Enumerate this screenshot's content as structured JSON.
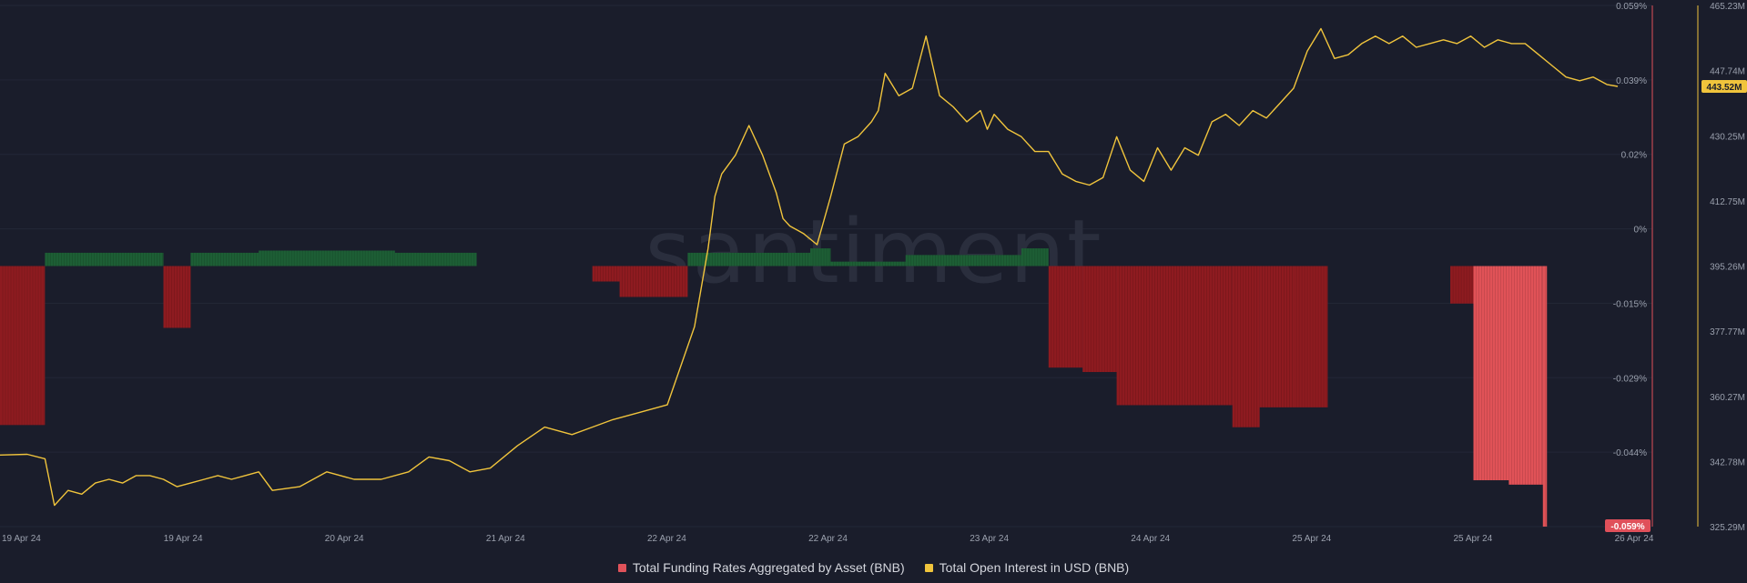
{
  "chart_data": {
    "type": "bar+line",
    "watermark": ".santiment.",
    "x_ticks": [
      "19 Apr 24",
      "19 Apr 24",
      "20 Apr 24",
      "21 Apr 24",
      "22 Apr 24",
      "22 Apr 24",
      "23 Apr 24",
      "24 Apr 24",
      "25 Apr 24",
      "25 Apr 24",
      "26 Apr 24"
    ],
    "y_left": {
      "ticks": [
        "0.059%",
        "0.039%",
        "0.02%",
        "0%",
        "-0.015%",
        "-0.029%",
        "-0.044%",
        "-0.059%"
      ],
      "range": [
        -0.059,
        0.059
      ],
      "unit": "%",
      "current_label": "-0.059%"
    },
    "y_right": {
      "ticks": [
        "465.23M",
        "447.74M",
        "430.25M",
        "412.75M",
        "395.26M",
        "377.77M",
        "360.27M",
        "342.78M",
        "325.29M"
      ],
      "range": [
        325.29,
        465.23
      ],
      "unit": "M",
      "current_label": "443.52M"
    },
    "colors": {
      "positive_bar": "#1d5e35",
      "negative_bar": "#8e1b20",
      "highlight_bar": "#e05257",
      "line": "#f0c43c",
      "left_axis": "#e0505a",
      "right_axis": "#f0c43c"
    },
    "series": [
      {
        "name": "Total Funding Rates Aggregated by Asset (BNB)",
        "kind": "bar",
        "color": "#e0525a",
        "x_range": [
          0,
          120
        ],
        "segments": [
          {
            "from": 0,
            "to": 3.3,
            "value": -0.036
          },
          {
            "from": 3.3,
            "to": 12,
            "value": 0.003
          },
          {
            "from": 12,
            "to": 14,
            "value": -0.014
          },
          {
            "from": 14,
            "to": 19,
            "value": 0.003
          },
          {
            "from": 19,
            "to": 29,
            "value": 0.0035
          },
          {
            "from": 29,
            "to": 35,
            "value": 0.003
          },
          {
            "from": 43.5,
            "to": 45.5,
            "value": -0.0035
          },
          {
            "from": 45.5,
            "to": 50.5,
            "value": -0.007
          },
          {
            "from": 50.5,
            "to": 59.5,
            "value": 0.003
          },
          {
            "from": 59.5,
            "to": 61,
            "value": 0.004
          },
          {
            "from": 61,
            "to": 66.5,
            "value": 0.001
          },
          {
            "from": 66.5,
            "to": 75,
            "value": 0.0025
          },
          {
            "from": 75,
            "to": 77,
            "value": 0.004
          },
          {
            "from": 77,
            "to": 79.5,
            "value": -0.023
          },
          {
            "from": 79.5,
            "to": 82,
            "value": -0.024
          },
          {
            "from": 82,
            "to": 90.5,
            "value": -0.0315
          },
          {
            "from": 90.5,
            "to": 92.5,
            "value": -0.0365
          },
          {
            "from": 92.5,
            "to": 95,
            "value": -0.032
          },
          {
            "from": 95,
            "to": 97.5,
            "value": -0.032
          },
          {
            "from": 106.5,
            "to": 108.2,
            "value": -0.0085
          },
          {
            "from": 108.2,
            "to": 110.8,
            "value": -0.0485,
            "highlight": true
          },
          {
            "from": 110.8,
            "to": 113.3,
            "value": -0.0495,
            "highlight": true
          },
          {
            "from": 113.3,
            "to": 113.6,
            "value": -0.059,
            "highlight": true
          }
        ]
      },
      {
        "name": "Total Open Interest in USD (BNB)",
        "kind": "line",
        "color": "#f0c43c",
        "x_range": [
          0,
          120
        ],
        "x": [
          0,
          2,
          3.3,
          4,
          5,
          6,
          7,
          8,
          9,
          10,
          11,
          12,
          13,
          14,
          15,
          16,
          17,
          18,
          19,
          20,
          22,
          24,
          26,
          28,
          30,
          31.5,
          33,
          34.5,
          36,
          38,
          40,
          42,
          43.5,
          45,
          47,
          49,
          51,
          52,
          52.5,
          53,
          54,
          55,
          56,
          57,
          57.5,
          58,
          59,
          60,
          61,
          62,
          63,
          64,
          64.5,
          65,
          66,
          67,
          68,
          69,
          70,
          71,
          72,
          72.5,
          73,
          74,
          75,
          76,
          77,
          78,
          79,
          80,
          81,
          82,
          83,
          84,
          85,
          86,
          87,
          88,
          89,
          90,
          91,
          92,
          93,
          94,
          95,
          96,
          97,
          98,
          99,
          100,
          101,
          102,
          103,
          104,
          105,
          106,
          107,
          108,
          109,
          110,
          111,
          112,
          113,
          114,
          115,
          116,
          117,
          118,
          118.8
        ],
        "values": [
          344.5,
          344.7,
          343.5,
          331,
          335,
          334,
          337,
          338,
          337,
          339,
          339,
          338,
          336,
          337,
          338,
          339,
          338,
          339,
          340,
          335,
          336,
          340,
          338,
          338,
          340,
          344,
          343,
          340,
          341,
          347,
          352,
          350,
          352,
          354,
          356,
          358,
          379,
          400,
          414,
          420,
          425,
          433,
          425,
          415,
          408,
          406,
          404,
          401,
          414,
          428,
          430,
          434,
          437,
          447,
          441,
          443,
          457,
          441,
          438,
          434,
          437,
          432,
          436,
          432,
          430,
          426,
          426,
          420,
          418,
          417,
          419,
          430,
          421,
          418,
          427,
          421,
          427,
          425,
          434,
          436,
          433,
          437,
          435,
          439,
          443,
          453,
          459,
          451,
          452,
          455,
          457,
          455,
          457,
          454,
          455,
          456,
          455,
          457,
          454,
          456,
          455,
          455,
          452,
          449,
          446,
          445,
          446,
          444,
          443.5
        ]
      }
    ],
    "legend": [
      {
        "label": "Total Funding Rates Aggregated by Asset (BNB)",
        "color": "#e0525a"
      },
      {
        "label": "Total Open Interest in USD (BNB)",
        "color": "#f0c43c"
      }
    ]
  }
}
